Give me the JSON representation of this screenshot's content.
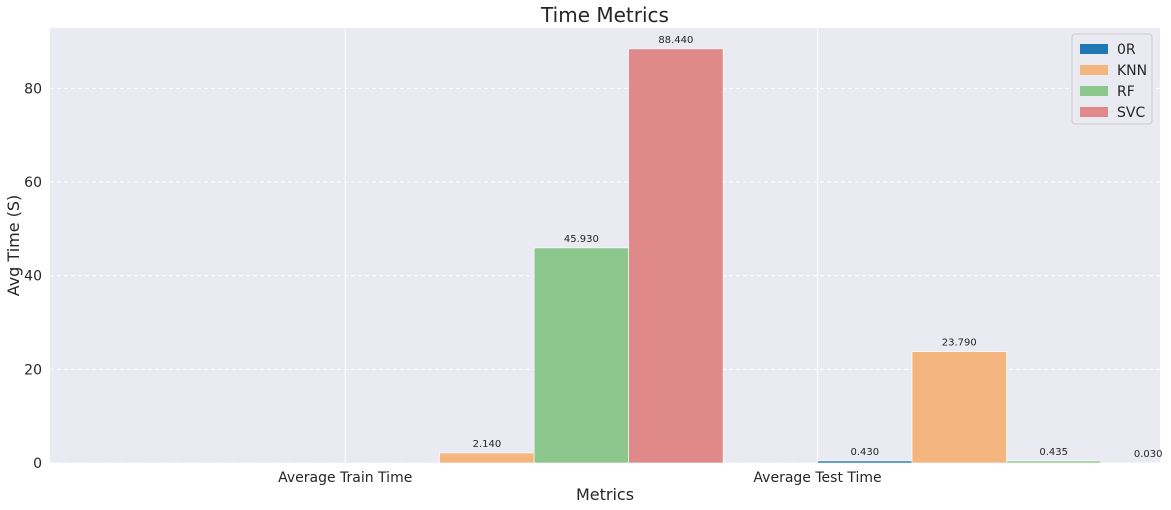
{
  "chart_data": {
    "type": "bar",
    "title": "Time Metrics",
    "xlabel": "Metrics",
    "ylabel": "Avg Time (S)",
    "categories": [
      "Average Train Time",
      "Average Test Time"
    ],
    "series": [
      {
        "name": "0R",
        "color": "#1f77b4",
        "values": [
          0.0,
          0.43
        ],
        "labels": [
          "",
          "0.430"
        ]
      },
      {
        "name": "KNN",
        "color": "#f5b57f",
        "values": [
          2.14,
          23.79
        ],
        "labels": [
          "2.140",
          "23.790"
        ]
      },
      {
        "name": "RF",
        "color": "#8bc78c",
        "values": [
          45.93,
          0.435
        ],
        "labels": [
          "45.930",
          "0.435"
        ]
      },
      {
        "name": "SVC",
        "color": "#df898a",
        "values": [
          88.44,
          0.03
        ],
        "labels": [
          "88.440",
          "0.030"
        ]
      }
    ],
    "ylim": [
      0,
      92.9
    ],
    "yticks": [
      0,
      20,
      40,
      60,
      80
    ],
    "grid": true,
    "legend_position": "top-right",
    "background": "#eaeaf2"
  }
}
